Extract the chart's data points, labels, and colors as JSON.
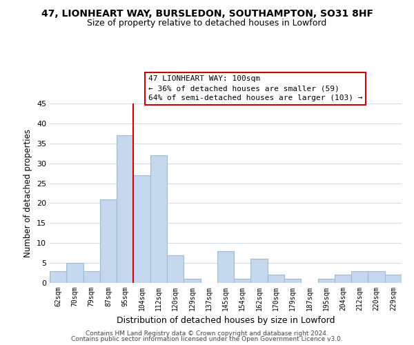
{
  "title1": "47, LIONHEART WAY, BURSLEDON, SOUTHAMPTON, SO31 8HF",
  "title2": "Size of property relative to detached houses in Lowford",
  "xlabel": "Distribution of detached houses by size in Lowford",
  "ylabel": "Number of detached properties",
  "bar_labels": [
    "62sqm",
    "70sqm",
    "79sqm",
    "87sqm",
    "95sqm",
    "104sqm",
    "112sqm",
    "120sqm",
    "129sqm",
    "137sqm",
    "145sqm",
    "154sqm",
    "162sqm",
    "170sqm",
    "179sqm",
    "187sqm",
    "195sqm",
    "204sqm",
    "212sqm",
    "220sqm",
    "229sqm"
  ],
  "bar_values": [
    3,
    5,
    3,
    21,
    37,
    27,
    32,
    7,
    1,
    0,
    8,
    1,
    6,
    2,
    1,
    0,
    1,
    2,
    3,
    3,
    2
  ],
  "bar_color": "#c5d8ed",
  "bar_edge_color": "#a0b8d0",
  "vline_x_idx": 5,
  "vline_color": "#cc0000",
  "annotation_line1": "47 LIONHEART WAY: 100sqm",
  "annotation_line2": "← 36% of detached houses are smaller (59)",
  "annotation_line3": "64% of semi-detached houses are larger (103) →",
  "annotation_box_color": "#ffffff",
  "annotation_box_edge": "#cc0000",
  "ylim": [
    0,
    45
  ],
  "yticks": [
    0,
    5,
    10,
    15,
    20,
    25,
    30,
    35,
    40,
    45
  ],
  "footer1": "Contains HM Land Registry data © Crown copyright and database right 2024.",
  "footer2": "Contains public sector information licensed under the Open Government Licence v3.0.",
  "bg_color": "#ffffff",
  "grid_color": "#d0dce8"
}
